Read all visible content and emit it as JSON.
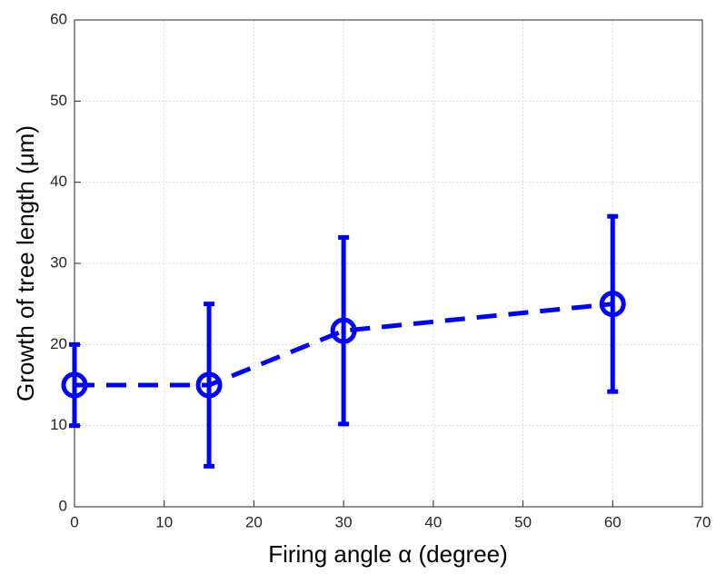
{
  "chart_data": {
    "type": "errorbar-line",
    "x_label": "Firing angle α (degree)",
    "y_label": "Growth of tree length (μm)",
    "x": [
      0,
      15,
      30,
      60
    ],
    "series": [
      {
        "color": "#0000ff",
        "values": [
          15,
          15,
          21.7,
          25
        ],
        "errors": [
          5,
          10,
          11.5,
          10.8
        ]
      }
    ],
    "xlim": [
      0,
      70
    ],
    "xticks": [
      0,
      10,
      20,
      30,
      40,
      50,
      60,
      70
    ],
    "ylim": [
      0,
      60
    ],
    "yticks": [
      0,
      10,
      20,
      30,
      40,
      50,
      60
    ],
    "grid": true
  }
}
